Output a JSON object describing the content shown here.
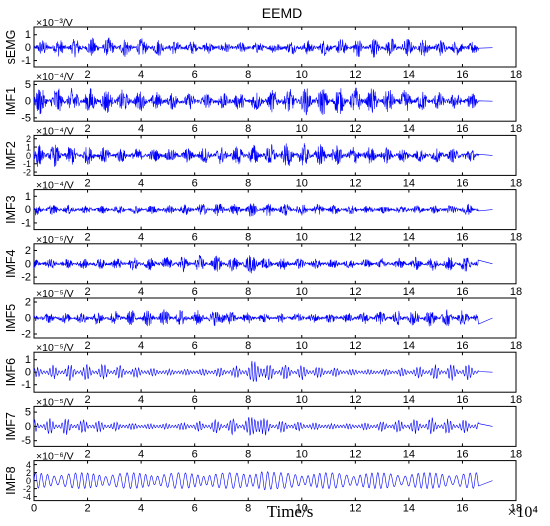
{
  "chart_data": {
    "type": "line",
    "title": "EEMD",
    "xlabel": "Time/s",
    "x_multiplier": "×10⁴",
    "xlim": [
      0,
      18
    ],
    "x_ticks": [
      "0",
      "2",
      "4",
      "6",
      "8",
      "10",
      "12",
      "14",
      "16",
      "18"
    ],
    "signal_end": 16.6,
    "line_color": "#0000ff",
    "grid": false,
    "panels": [
      {
        "name": "sEMG",
        "scale_label": "×10⁻³/V",
        "yticks": [
          -1,
          0,
          1
        ],
        "ytick_labels": [
          "-1",
          "0",
          "1"
        ],
        "ylim": [
          -1.5,
          1.6
        ],
        "amplitude": 0.8,
        "texture": "burst"
      },
      {
        "name": "IMF1",
        "scale_label": "×10⁻⁴/V",
        "yticks": [
          -5,
          0,
          5
        ],
        "ytick_labels": [
          "-5",
          "0",
          "5"
        ],
        "ylim": [
          -6,
          6
        ],
        "amplitude": 4.5,
        "texture": "burst"
      },
      {
        "name": "IMF2",
        "scale_label": "×10⁻⁴/V",
        "yticks": [
          -2,
          -1,
          0,
          1,
          2
        ],
        "ytick_labels": [
          "-2",
          "-1",
          "0",
          "1",
          "2"
        ],
        "ylim": [
          -2.4,
          2.4
        ],
        "amplitude": 1.5,
        "texture": "burst"
      },
      {
        "name": "IMF3",
        "scale_label": "×10⁻⁴/V",
        "yticks": [
          -1,
          0,
          1
        ],
        "ytick_labels": [
          "-1",
          "0",
          "1"
        ],
        "ylim": [
          -1.5,
          1.5
        ],
        "amplitude": 0.55,
        "texture": "burst"
      },
      {
        "name": "IMF4",
        "scale_label": "×10⁻⁵/V",
        "yticks": [
          -2,
          0,
          2
        ],
        "ytick_labels": [
          "-2",
          "0",
          "2"
        ],
        "ylim": [
          -3,
          3
        ],
        "amplitude": 1.3,
        "texture": "burst"
      },
      {
        "name": "IMF5",
        "scale_label": "×10⁻⁵/V",
        "yticks": [
          -2,
          0,
          2
        ],
        "ytick_labels": [
          "-2",
          "0",
          "2"
        ],
        "ylim": [
          -2.5,
          2.5
        ],
        "amplitude": 1.1,
        "texture": "burst"
      },
      {
        "name": "IMF6",
        "scale_label": "×10⁻⁵/V",
        "yticks": [
          -1,
          0,
          1
        ],
        "ytick_labels": [
          "-1",
          "0",
          "1"
        ],
        "ylim": [
          -1.6,
          1.6
        ],
        "amplitude": 0.75,
        "texture": "oscillation"
      },
      {
        "name": "IMF7",
        "scale_label": "×10⁻⁵/V",
        "yticks": [
          -5,
          0,
          5
        ],
        "ytick_labels": [
          "-5",
          "0",
          "5"
        ],
        "ylim": [
          -7,
          7
        ],
        "amplitude": 3.2,
        "texture": "oscillation"
      },
      {
        "name": "IMF8",
        "scale_label": "×10⁻⁶/V",
        "yticks": [
          -4,
          -2,
          0,
          2,
          4
        ],
        "ytick_labels": [
          "-4",
          "-2",
          "0",
          "2",
          "4"
        ],
        "ylim": [
          -5,
          5
        ],
        "amplitude": 2.2,
        "texture": "wave"
      }
    ]
  }
}
